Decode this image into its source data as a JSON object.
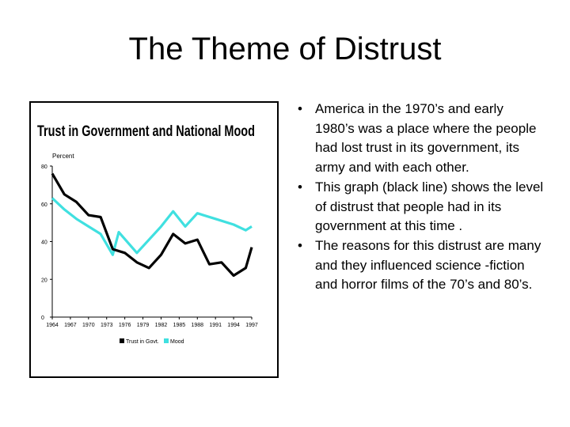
{
  "slide": {
    "title": "The Theme of Distrust",
    "bullets": [
      "America in the 1970’s and early 1980’s was a place where the people had lost trust in its government, its army and with each other.",
      "This graph (black line) shows the level of distrust that people had in its government at this time .",
      "The reasons for this distrust are many and they influenced science -fiction and horror films of the 70’s and 80’s."
    ],
    "bullet_glyph": "•"
  },
  "chart_data": {
    "type": "line",
    "title": "Trust in Government and National Mood",
    "ylabel": "Percent",
    "xlabel": "",
    "x": [
      1964,
      1967,
      1970,
      1973,
      1976,
      1979,
      1982,
      1985,
      1988,
      1991,
      1994,
      1997
    ],
    "xlim": [
      1964,
      1997
    ],
    "ylim": [
      0,
      80
    ],
    "yticks": [
      0,
      20,
      40,
      60,
      80
    ],
    "xticks": [
      "1964",
      "1967",
      "1970",
      "1973",
      "1976",
      "1979",
      "1982",
      "1985",
      "1988",
      "1991",
      "1994",
      "1997"
    ],
    "grid": false,
    "legend_position": "bottom",
    "series": [
      {
        "name": "Trust in Govt.",
        "color": "#000000",
        "points": [
          [
            1964,
            76
          ],
          [
            1966,
            65
          ],
          [
            1968,
            61
          ],
          [
            1970,
            54
          ],
          [
            1972,
            53
          ],
          [
            1974,
            36
          ],
          [
            1976,
            34
          ],
          [
            1978,
            29
          ],
          [
            1980,
            26
          ],
          [
            1982,
            33
          ],
          [
            1984,
            44
          ],
          [
            1986,
            39
          ],
          [
            1988,
            41
          ],
          [
            1990,
            28
          ],
          [
            1992,
            29
          ],
          [
            1994,
            22
          ],
          [
            1996,
            26
          ],
          [
            1997,
            37
          ]
        ]
      },
      {
        "name": "Mood",
        "color": "#40e0e0",
        "points": [
          [
            1964,
            63
          ],
          [
            1966,
            57
          ],
          [
            1968,
            52
          ],
          [
            1970,
            48
          ],
          [
            1972,
            44
          ],
          [
            1974,
            33
          ],
          [
            1975,
            45
          ],
          [
            1978,
            34
          ],
          [
            1982,
            48
          ],
          [
            1984,
            56
          ],
          [
            1986,
            48
          ],
          [
            1988,
            55
          ],
          [
            1991,
            52
          ],
          [
            1994,
            49
          ],
          [
            1996,
            46
          ],
          [
            1997,
            48
          ]
        ]
      }
    ]
  }
}
